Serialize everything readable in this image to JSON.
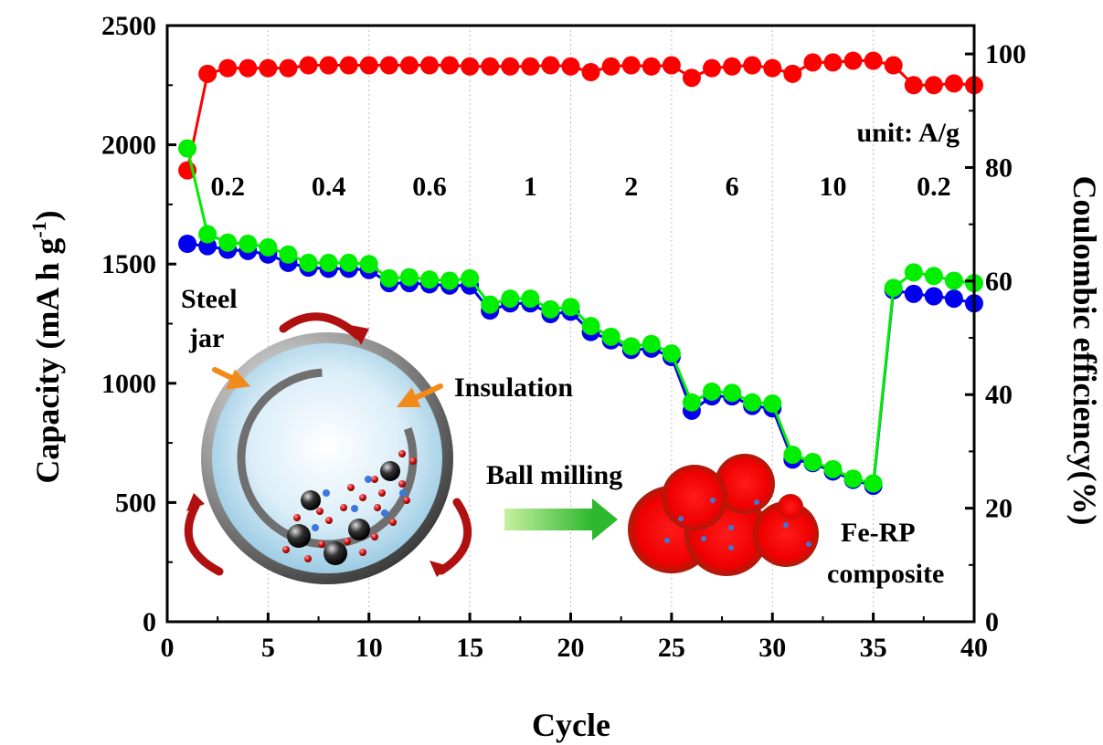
{
  "chart_data": {
    "type": "scatter",
    "xlabel": "Cycle",
    "ylabel_main": "Capacity (mA h g",
    "ylabel_sup": "-1",
    "ylabel_close": ")",
    "y2label": "Coulombic efficiency(%)",
    "xlim": [
      0,
      40
    ],
    "ylim": [
      0,
      2500
    ],
    "y2lim": [
      0,
      105
    ],
    "x_ticks": [
      0,
      5,
      10,
      15,
      20,
      25,
      30,
      35,
      40
    ],
    "y_ticks": [
      0,
      500,
      1000,
      1500,
      2000,
      2500
    ],
    "y2_ticks": [
      0,
      20,
      40,
      60,
      80,
      100
    ],
    "grid": "vertical dotted",
    "legend": "none",
    "colors": {
      "charge": "#00ee00",
      "discharge": "#0000ee",
      "efficiency": "#ff0000"
    },
    "x": [
      1,
      2,
      3,
      4,
      5,
      6,
      7,
      8,
      9,
      10,
      11,
      12,
      13,
      14,
      15,
      16,
      17,
      18,
      19,
      20,
      21,
      22,
      23,
      24,
      25,
      26,
      27,
      28,
      29,
      30,
      31,
      32,
      33,
      34,
      35,
      36,
      37,
      38,
      39,
      40
    ],
    "series": [
      {
        "key": "charge",
        "axis": "left",
        "values": [
          1985,
          1625,
          1590,
          1585,
          1570,
          1540,
          1505,
          1505,
          1505,
          1500,
          1440,
          1445,
          1435,
          1430,
          1440,
          1330,
          1355,
          1355,
          1310,
          1320,
          1240,
          1195,
          1155,
          1165,
          1125,
          920,
          965,
          960,
          920,
          915,
          700,
          670,
          640,
          600,
          580,
          1400,
          1465,
          1450,
          1430,
          1420
        ]
      },
      {
        "key": "discharge",
        "axis": "left",
        "values": [
          1585,
          1575,
          1560,
          1555,
          1540,
          1505,
          1485,
          1480,
          1480,
          1475,
          1420,
          1420,
          1415,
          1410,
          1410,
          1305,
          1335,
          1335,
          1290,
          1300,
          1215,
          1180,
          1140,
          1145,
          1110,
          885,
          945,
          945,
          905,
          895,
          680,
          665,
          630,
          595,
          570,
          1390,
          1375,
          1365,
          1355,
          1335
        ]
      },
      {
        "key": "efficiency",
        "axis": "right",
        "values": [
          79.5,
          96.5,
          97.5,
          97.5,
          97.5,
          97.5,
          98.0,
          98.0,
          98.0,
          98.0,
          98.0,
          98.0,
          98.0,
          98.0,
          97.8,
          97.8,
          97.8,
          97.8,
          98.0,
          97.8,
          96.8,
          97.8,
          98.0,
          97.8,
          98.0,
          95.8,
          97.5,
          97.8,
          98.0,
          97.5,
          96.5,
          98.5,
          98.5,
          98.8,
          98.8,
          98.0,
          94.5,
          94.5,
          94.8,
          94.5
        ]
      }
    ],
    "annotations": {
      "unit": "unit: A/g",
      "rates": [
        "0.2",
        "0.4",
        "0.6",
        "1",
        "2",
        "6",
        "10",
        "0.2"
      ],
      "steel_jar_1": "Steel",
      "steel_jar_2": "jar",
      "insulation": "Insulation",
      "ball_milling": "Ball milling",
      "fe_rp_1": "Fe-RP",
      "fe_rp_2": "composite"
    }
  }
}
